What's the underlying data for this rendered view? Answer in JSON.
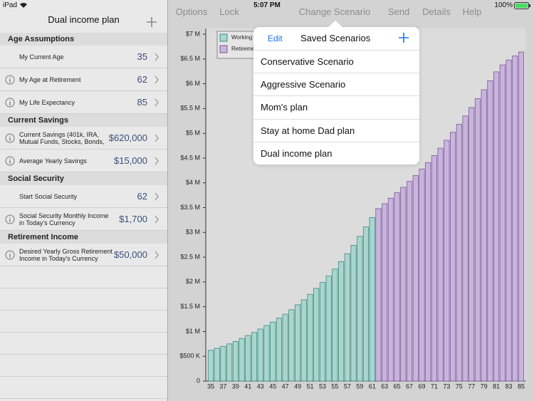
{
  "status_bar": {
    "device": "iPad",
    "time": "5:07 PM",
    "battery": "100%"
  },
  "sidebar": {
    "title": "Dual income plan",
    "sections": [
      {
        "title": "Age Assumptions",
        "rows": [
          {
            "label": [
              "My Current Age"
            ],
            "value": "35",
            "info": false
          },
          {
            "label": [
              "My Age at Retirement"
            ],
            "value": "62",
            "info": true
          },
          {
            "label": [
              "My Life Expectancy"
            ],
            "value": "85",
            "info": true
          }
        ]
      },
      {
        "title": "Current Savings",
        "rows": [
          {
            "label": [
              "Current Savings (401k, IRA,",
              "Mutual Funds, Stocks, Bonds,"
            ],
            "value": "$620,000",
            "info": true
          },
          {
            "label": [
              "Average Yearly Savings"
            ],
            "value": "$15,000",
            "info": true
          }
        ]
      },
      {
        "title": "Social Security",
        "rows": [
          {
            "label": [
              "Start Social Security"
            ],
            "value": "62",
            "info": false
          },
          {
            "label": [
              "Social Security Monthly Income",
              "in Today's Currency"
            ],
            "value": "$1,700",
            "info": true
          }
        ]
      },
      {
        "title": "Retirement Income",
        "rows": [
          {
            "label": [
              "Desired Yearly Gross Retirement",
              "Income in Today's Currency"
            ],
            "value": "$50,000",
            "info": true
          }
        ]
      }
    ]
  },
  "toolbar": [
    "Options",
    "Lock",
    "Change Scenario",
    "Send",
    "Details",
    "Help"
  ],
  "chart_data": {
    "type": "bar",
    "categories": [
      35,
      null,
      37,
      null,
      39,
      null,
      41,
      null,
      43,
      null,
      45,
      null,
      47,
      null,
      49,
      null,
      51,
      null,
      53,
      null,
      55,
      null,
      57,
      null,
      59,
      null,
      61,
      null,
      63,
      null,
      65,
      null,
      67,
      null,
      69,
      null,
      71,
      null,
      73,
      null,
      75,
      null,
      77,
      null,
      79,
      null,
      81,
      null,
      83,
      null,
      85
    ],
    "series": [
      {
        "name": "Working",
        "color": "#a9d6cf",
        "values": [
          620000,
          660000,
          700000,
          750000,
          800000,
          860000,
          920000,
          980000,
          1050000,
          1120000,
          1190000,
          1270000,
          1350000,
          1440000,
          1540000,
          1640000,
          1750000,
          1870000,
          1990000,
          2120000,
          2260000,
          2410000,
          2570000,
          2740000,
          2920000,
          3110000,
          3300000,
          null,
          null,
          null,
          null,
          null,
          null,
          null,
          null,
          null,
          null,
          null,
          null,
          null,
          null,
          null,
          null,
          null,
          null,
          null,
          null,
          null,
          null,
          null,
          null
        ]
      },
      {
        "name": "Retirement",
        "color": "#c9b4dd",
        "values": [
          null,
          null,
          null,
          null,
          null,
          null,
          null,
          null,
          null,
          null,
          null,
          null,
          null,
          null,
          null,
          null,
          null,
          null,
          null,
          null,
          null,
          null,
          null,
          null,
          null,
          null,
          null,
          3480000,
          3580000,
          3690000,
          3800000,
          3910000,
          4030000,
          4150000,
          4280000,
          4410000,
          4550000,
          4700000,
          4860000,
          5020000,
          5180000,
          5350000,
          5520000,
          5700000,
          5880000,
          6060000,
          6240000,
          6380000,
          6480000,
          6560000,
          6640000
        ]
      }
    ],
    "ylim": [
      0,
      7000000
    ],
    "yticks": [
      0,
      {
        "value": 500000,
        "label": "$500 K"
      },
      {
        "value": 1000000,
        "label": "$1 M"
      },
      {
        "value": 1500000,
        "label": "$1.5 M"
      },
      {
        "value": 2000000,
        "label": "$2 M"
      },
      {
        "value": 2500000,
        "label": "$2.5 M"
      },
      {
        "value": 3000000,
        "label": "$3 M"
      },
      {
        "value": 3500000,
        "label": "$3.5 M"
      },
      {
        "value": 4000000,
        "label": "$4 M"
      },
      {
        "value": 4500000,
        "label": "$4.5 M"
      },
      {
        "value": 5000000,
        "label": "$5 M"
      },
      {
        "value": 5500000,
        "label": "$5.5 M"
      },
      {
        "value": 6000000,
        "label": "$6 M"
      },
      {
        "value": 6500000,
        "label": "$6.5 M"
      },
      {
        "value": 7000000,
        "label": "$7 M"
      }
    ],
    "legend": "upper left"
  },
  "popover": {
    "edit": "Edit",
    "title": "Saved Scenarios",
    "items": [
      "Conservative Scenario",
      "Aggressive Scenario",
      "Mom's plan",
      "Stay at home Dad plan",
      "Dual income plan"
    ]
  }
}
